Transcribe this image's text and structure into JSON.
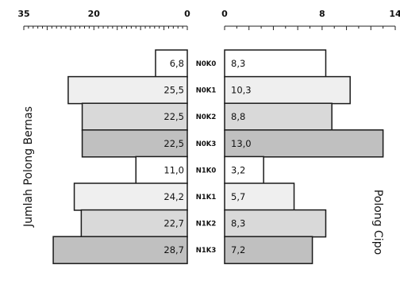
{
  "chart_data": {
    "type": "bar",
    "orientation": "horizontal-mirrored",
    "categories": [
      "N0K0",
      "N0K1",
      "N0K2",
      "N0K3",
      "N1K0",
      "N1K1",
      "N1K2",
      "N1K3"
    ],
    "series": [
      {
        "name": "Jumlah Polong  Bernas",
        "side": "left",
        "values": [
          6.8,
          25.5,
          22.5,
          22.5,
          11.0,
          24.2,
          22.7,
          28.7
        ],
        "labels": [
          "6,8",
          "25,5",
          "22,5",
          "22,5",
          "11,0",
          "24,2",
          "22,7",
          "28,7"
        ]
      },
      {
        "name": "Polong  Cipo",
        "side": "right",
        "values": [
          8.3,
          10.3,
          8.8,
          13.0,
          3.2,
          5.7,
          8.3,
          7.2
        ],
        "labels": [
          "8,3",
          "10,3",
          "8,8",
          "13,0",
          "3,2",
          "5,7",
          "8,3",
          "7,2"
        ]
      }
    ],
    "left_axis": {
      "range": [
        0,
        35
      ],
      "ticks": [
        35,
        20,
        0
      ],
      "tick_labels": [
        "35",
        "20",
        "0"
      ]
    },
    "right_axis": {
      "range": [
        0,
        14
      ],
      "ticks": [
        0,
        8,
        14
      ],
      "tick_labels": [
        "0",
        "8",
        "14"
      ]
    },
    "row_fill_colors": [
      "#ffffff",
      "#efefef",
      "#d9d9d9",
      "#c0c0c0",
      "#ffffff",
      "#efefef",
      "#d9d9d9",
      "#c0c0c0"
    ],
    "grid": false,
    "legend": "none"
  }
}
